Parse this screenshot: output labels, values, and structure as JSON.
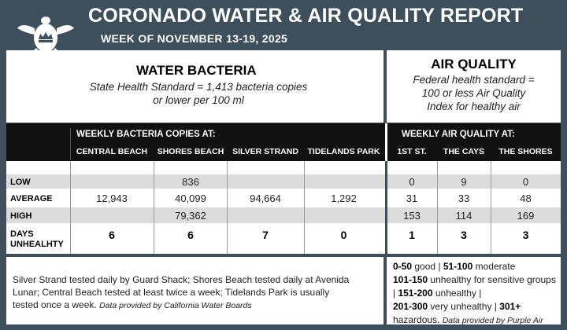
{
  "header": {
    "title": "CORONADO WATER & AIR QUALITY REPORT",
    "subtitle": "WEEK OF NOVEMBER 13-19, 2025"
  },
  "water": {
    "title": "WATER BACTERIA",
    "standard_line1": "State Health Standard  = 1,413 bacteria copies",
    "standard_line2": "or lower per 100 ml",
    "band_heading": "WEEKLY BACTERIA COPIES AT:",
    "columns": [
      "CENTRAL BEACH",
      "SHORES BEACH",
      "SILVER STRAND",
      "TIDELANDS PARK"
    ]
  },
  "air": {
    "title": "AIR QUALITY",
    "standard_line1": "Federal health standard =",
    "standard_line2": "100 or less Air Quality",
    "standard_line3": "Index for healthy air",
    "band_heading": "WEEKLY AIR QUALITY AT:",
    "columns": [
      "1ST ST.",
      "THE CAYS",
      "THE SHORES"
    ]
  },
  "rows": {
    "low": {
      "label": "LOW",
      "water": [
        "",
        "836",
        "",
        ""
      ],
      "air": [
        "0",
        "9",
        "0"
      ]
    },
    "average": {
      "label": "AVERAGE",
      "water": [
        "12,943",
        "40,099",
        "94,664",
        "1,292"
      ],
      "air": [
        "31",
        "33",
        "48"
      ]
    },
    "high": {
      "label": "HIGH",
      "water": [
        "",
        "79,362",
        "",
        ""
      ],
      "air": [
        "153",
        "114",
        "169"
      ]
    },
    "days": {
      "label_line1": "DAYS",
      "label_line2": "UNHEALHTY",
      "water": [
        "6",
        "6",
        "7",
        "0"
      ],
      "air": [
        "1",
        "3",
        "3"
      ]
    }
  },
  "footer": {
    "water_note_line1": "Silver Strand tested daily by Guard Shack; Shores Beach tested daily at Avenida",
    "water_note_line2": "Lunar; Central Beach tested at least twice a week; Tidelands Park is usually",
    "water_note_line3": "tested once a week.",
    "water_source": "Data provided by California Water Boards",
    "legend": [
      {
        "range": "0-50",
        "desc": "good"
      },
      {
        "range": "51-100",
        "desc": "moderate"
      },
      {
        "range": "101-150",
        "desc": "unhealthy for sensitive groups"
      },
      {
        "range": "151-200",
        "desc": "unhealthy"
      },
      {
        "range": "201-300",
        "desc": "very unhealthy"
      },
      {
        "range": "301+",
        "desc": "hazardous."
      }
    ],
    "air_source": "Data provided by Purple Air"
  },
  "colors": {
    "background": "#3c4f5b",
    "band": "#111111",
    "shade": "#dcdcdc"
  },
  "icons": [
    "sea-turtle-crown-logo-icon"
  ]
}
